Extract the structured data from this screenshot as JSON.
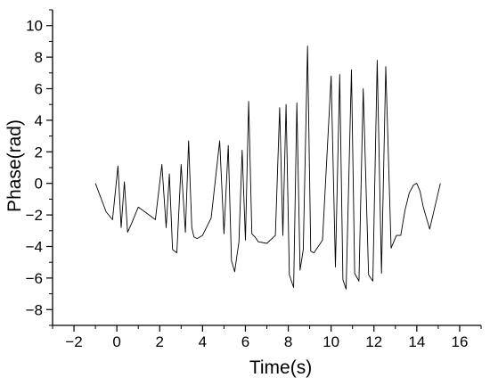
{
  "chart_data": {
    "type": "line",
    "title": "",
    "xlabel": "Time(s)",
    "ylabel": "Phase(rad)",
    "xlim": [
      -3,
      17
    ],
    "ylim": [
      -9,
      11
    ],
    "x_ticks": [
      -2,
      0,
      2,
      4,
      6,
      8,
      10,
      12,
      14,
      16
    ],
    "y_ticks": [
      -8,
      -6,
      -4,
      -2,
      0,
      2,
      4,
      6,
      8,
      10
    ],
    "grid": false,
    "legend": "none",
    "line_color": "#000000",
    "series": [
      {
        "x": [
          -1.0,
          -0.5,
          -0.2,
          0.05,
          0.2,
          0.35,
          0.5,
          0.7,
          1.0,
          1.4,
          1.8,
          2.1,
          2.3,
          2.45,
          2.6,
          2.8,
          3.0,
          3.2,
          3.35,
          3.5,
          3.6,
          3.75,
          4.0,
          4.4,
          4.8,
          5.0,
          5.2,
          5.35,
          5.5,
          5.7,
          5.85,
          6.0,
          6.15,
          6.3,
          6.45,
          6.6,
          7.0,
          7.4,
          7.6,
          7.75,
          7.9,
          8.05,
          8.25,
          8.4,
          8.55,
          8.7,
          8.9,
          9.05,
          9.2,
          9.35,
          9.6,
          10.0,
          10.2,
          10.4,
          10.55,
          10.7,
          10.95,
          11.1,
          11.3,
          11.5,
          11.75,
          11.95,
          12.15,
          12.35,
          12.55,
          12.8,
          13.05,
          13.25,
          13.45,
          13.65,
          13.85,
          14.0,
          14.15,
          14.3,
          14.6,
          15.1
        ],
        "y": [
          0.0,
          -1.8,
          -2.3,
          1.1,
          -2.8,
          0.1,
          -3.1,
          -2.5,
          -1.5,
          -1.9,
          -2.3,
          1.2,
          -2.8,
          0.6,
          -4.2,
          -4.4,
          1.2,
          -3.1,
          2.7,
          -2.8,
          -3.4,
          -3.5,
          -3.3,
          -2.2,
          2.7,
          -3.2,
          2.4,
          -4.9,
          -5.6,
          -3.7,
          2.1,
          -3.6,
          5.2,
          -3.2,
          -3.4,
          -3.7,
          -3.8,
          -3.3,
          4.8,
          -3.3,
          5.0,
          -5.8,
          -6.6,
          5.1,
          -5.5,
          -4.2,
          8.7,
          -4.3,
          -4.4,
          -4.1,
          -3.6,
          6.8,
          -5.3,
          6.9,
          -6.1,
          -6.7,
          7.2,
          -5.7,
          -6.2,
          6.0,
          -5.8,
          -6.2,
          7.8,
          -5.7,
          7.4,
          -4.1,
          -3.3,
          -3.3,
          -1.7,
          -0.6,
          -0.1,
          0.0,
          -0.5,
          -1.5,
          -2.9,
          0.0
        ]
      }
    ]
  }
}
